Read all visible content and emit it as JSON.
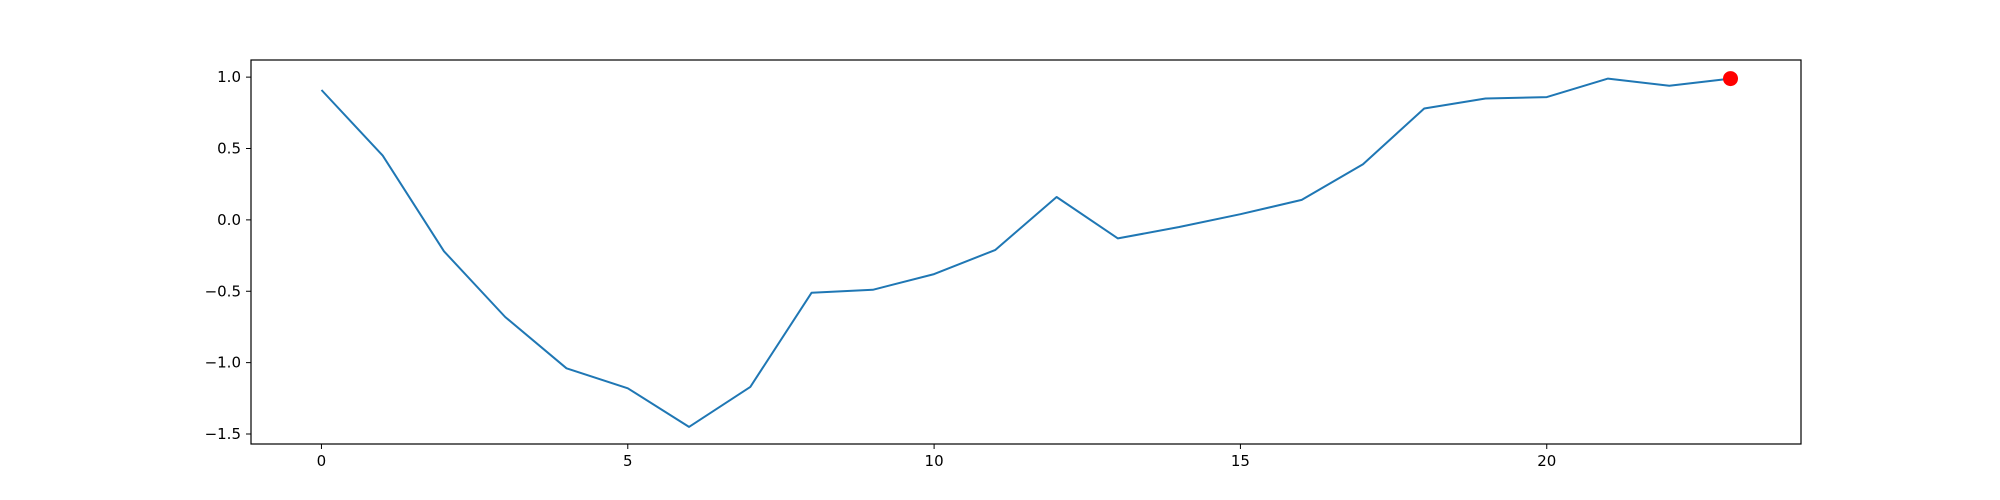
{
  "chart_data": {
    "type": "line",
    "title": "",
    "xlabel": "",
    "ylabel": "",
    "grid": false,
    "xlim": [
      -1.15,
      24.15
    ],
    "ylim": [
      -1.57,
      1.12
    ],
    "x_ticks": [
      0,
      5,
      10,
      15,
      20
    ],
    "y_ticks": [
      1.0,
      0.5,
      0.0,
      -0.5,
      -1.0,
      -1.5
    ],
    "x_tick_labels": [
      "0",
      "5",
      "10",
      "15",
      "20"
    ],
    "y_tick_labels": [
      "1.0",
      "0.5",
      "0.0",
      "−0.5",
      "−1.0",
      "−1.5"
    ],
    "series": [
      {
        "color": "#1f77b4",
        "x": [
          0,
          1,
          2,
          3,
          4,
          5,
          6,
          7,
          8,
          9,
          10,
          11,
          12,
          13,
          14,
          15,
          16,
          17,
          18,
          19,
          20,
          21,
          22,
          23
        ],
        "y": [
          0.91,
          0.45,
          -0.22,
          -0.68,
          -1.04,
          -1.18,
          -1.45,
          -1.17,
          -0.51,
          -0.49,
          -0.38,
          -0.21,
          0.16,
          -0.13,
          -0.05,
          0.04,
          0.14,
          0.39,
          0.78,
          0.85,
          0.86,
          0.99,
          0.94,
          0.99
        ]
      }
    ],
    "highlight_point": {
      "x": 23,
      "y": 0.99,
      "color": "#ff0000"
    }
  }
}
